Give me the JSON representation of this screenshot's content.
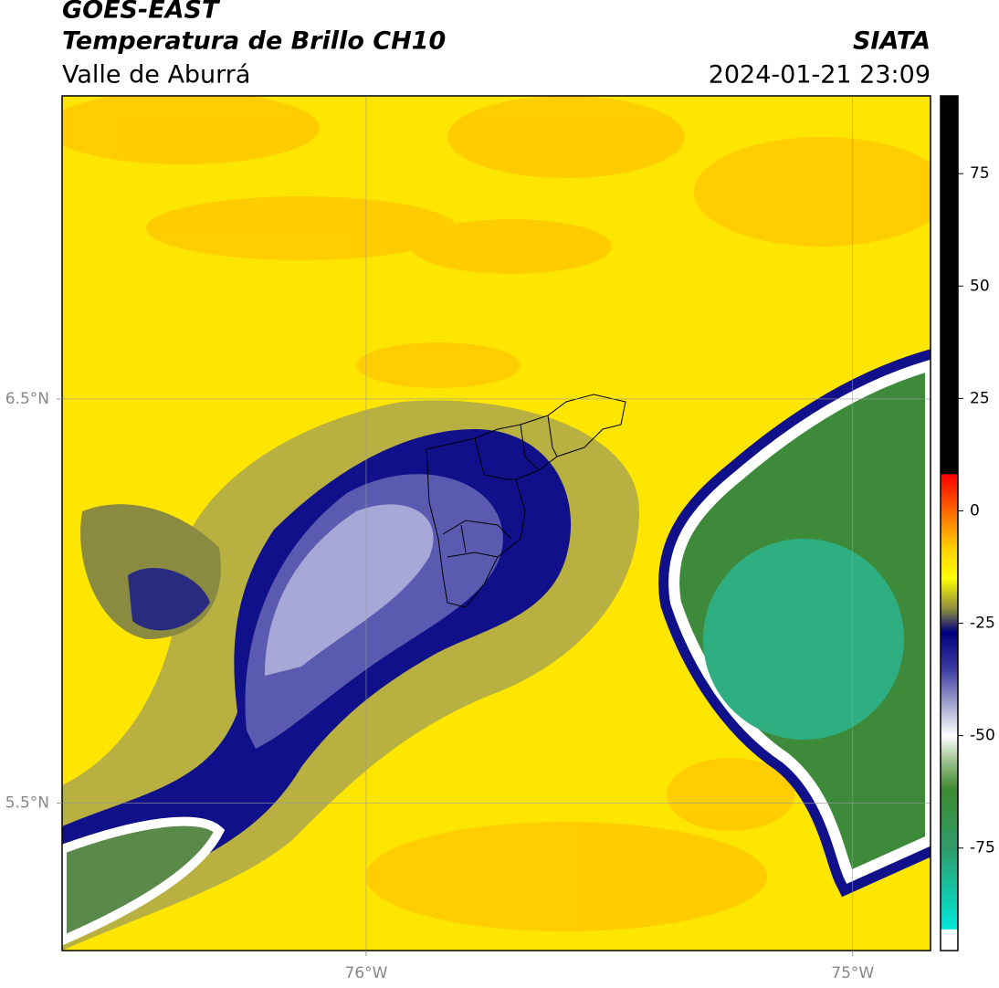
{
  "header": {
    "title": "GOES-EAST",
    "subtitle": "Temperatura de Brillo CH10",
    "region": "Valle de Aburrá",
    "source": "SIATA",
    "datetime": "2024-01-21 23:09"
  },
  "map": {
    "xlim": [
      -76.625,
      -74.84
    ],
    "ylim": [
      5.135,
      7.25
    ],
    "xticks": [
      {
        "value": -76,
        "label": "76°W"
      },
      {
        "value": -75,
        "label": "75°W"
      }
    ],
    "yticks": [
      {
        "value": 6.5,
        "label": "6.5°N"
      },
      {
        "value": 5.5,
        "label": "5.5°N"
      }
    ],
    "grid": true
  },
  "colorbar": {
    "lim": [
      -97.8,
      92.3
    ],
    "ticks": [
      75,
      50,
      25,
      0,
      -25,
      -50,
      -75
    ],
    "stops": [
      {
        "value": -97.8,
        "color": "#ffffff"
      },
      {
        "value": -93.2,
        "color": "#ffffff"
      },
      {
        "value": -93,
        "color": "#00e8d8"
      },
      {
        "value": -75,
        "color": "#2e9c6a"
      },
      {
        "value": -62,
        "color": "#3d8a2e"
      },
      {
        "value": -55,
        "color": "#a8c89a"
      },
      {
        "value": -50,
        "color": "#ffffff"
      },
      {
        "value": -44,
        "color": "#b0b0d8"
      },
      {
        "value": -35,
        "color": "#3a3aa0"
      },
      {
        "value": -27,
        "color": "#000080"
      },
      {
        "value": -22,
        "color": "#8a8a40"
      },
      {
        "value": -15,
        "color": "#ffff00"
      },
      {
        "value": -8,
        "color": "#ffcc00"
      },
      {
        "value": -2,
        "color": "#ff8000"
      },
      {
        "value": 8,
        "color": "#ff0000"
      },
      {
        "value": 8.3,
        "color": "#000000"
      },
      {
        "value": 92.3,
        "color": "#000000"
      }
    ]
  }
}
